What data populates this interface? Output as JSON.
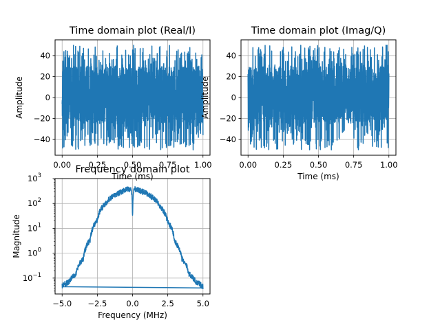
{
  "figure": {
    "background": "#ffffff",
    "line_color": "#1f77b4",
    "grid_color": "#b0b0b0"
  },
  "chart_data": [
    {
      "type": "line",
      "title": "Time domain plot (Real/I)",
      "xlabel": "Time (ms)",
      "ylabel": "Amplitude",
      "xlim": [
        -0.05,
        1.05
      ],
      "ylim": [
        -55,
        55
      ],
      "xticks": [
        0.0,
        0.25,
        0.5,
        0.75,
        1.0
      ],
      "xticklabels": [
        "0.00",
        "0.25",
        "0.50",
        "0.75",
        "1.00"
      ],
      "yticks": [
        -40,
        -20,
        0,
        20,
        40
      ],
      "yticklabels": [
        "−40",
        "−20",
        "0",
        "20",
        "40"
      ],
      "grid": true,
      "legend": "none",
      "series": [
        {
          "x_range": [
            0.0,
            1.0
          ],
          "y_range": [
            -50,
            50
          ],
          "y_dense_band": [
            -25,
            30
          ]
        }
      ]
    },
    {
      "type": "line",
      "title": "Time domain plot (Imag/Q)",
      "xlabel": "Time (ms)",
      "ylabel": "Amplitude",
      "xlim": [
        -0.05,
        1.05
      ],
      "ylim": [
        -55,
        55
      ],
      "xticks": [
        0.0,
        0.25,
        0.5,
        0.75,
        1.0
      ],
      "xticklabels": [
        "0.00",
        "0.25",
        "0.50",
        "0.75",
        "1.00"
      ],
      "yticks": [
        -40,
        -20,
        0,
        20,
        40
      ],
      "yticklabels": [
        "−40",
        "−20",
        "0",
        "20",
        "40"
      ],
      "grid": true,
      "legend": "none",
      "series": [
        {
          "x_range": [
            0.0,
            1.0
          ],
          "y_range": [
            -50,
            50
          ],
          "y_dense_band": [
            -25,
            30
          ]
        }
      ]
    },
    {
      "type": "line",
      "title": "Frequency domain plot",
      "xlabel": "Frequency (MHz)",
      "ylabel": "Magnitude",
      "yscale": "log",
      "xlim": [
        -5.5,
        5.5
      ],
      "ylim": [
        0.023,
        1000
      ],
      "xticks": [
        -5.0,
        -2.5,
        0.0,
        2.5,
        5.0
      ],
      "xticklabels": [
        "−5.0",
        "−2.5",
        "0.0",
        "2.5",
        "5.0"
      ],
      "yticks": [
        0.1,
        1,
        10,
        100,
        1000
      ],
      "yticklabels": [
        "10",
        "10",
        "10",
        "10",
        "10"
      ],
      "ytick_exponents": [
        "−1",
        "0",
        "1",
        "2",
        "3"
      ],
      "grid": true,
      "legend": "none",
      "series": [
        {
          "x": [
            -5.0,
            -4.5,
            -4.0,
            -3.5,
            -3.0,
            -2.5,
            -2.0,
            -1.5,
            -1.0,
            -0.5,
            -0.1,
            0.0,
            0.1,
            0.5,
            1.0,
            1.5,
            2.0,
            2.5,
            3.0,
            3.5,
            4.0,
            4.5,
            5.0
          ],
          "y": [
            0.05,
            0.07,
            0.15,
            0.6,
            3.5,
            22,
            90,
            170,
            250,
            350,
            380,
            35,
            380,
            330,
            250,
            160,
            70,
            18,
            3,
            0.6,
            0.15,
            0.07,
            0.045
          ],
          "wrap_segment": {
            "x": [
              5.0,
              -5.0
            ],
            "y": [
              0.04,
              0.045
            ]
          }
        }
      ]
    }
  ]
}
